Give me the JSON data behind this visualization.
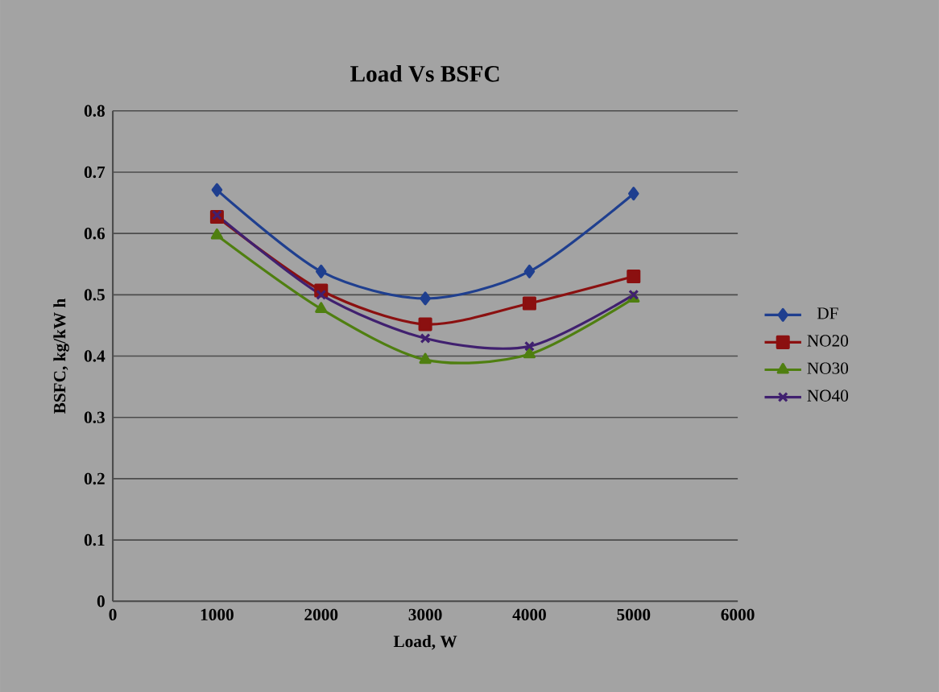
{
  "chart_data": {
    "type": "line",
    "title": "Load Vs BSFC",
    "xlabel": "Load, W",
    "ylabel": "BSFC, kg/kW h",
    "x": [
      1000,
      2000,
      3000,
      4000,
      5000
    ],
    "series": [
      {
        "name": "DF",
        "color": "#1f3f8f",
        "marker": "diamond",
        "values": [
          0.671,
          0.538,
          0.494,
          0.538,
          0.665
        ]
      },
      {
        "name": "NO20",
        "color": "#8b1010",
        "marker": "square",
        "values": [
          0.627,
          0.507,
          0.452,
          0.486,
          0.53
        ]
      },
      {
        "name": "NO30",
        "color": "#4f7f10",
        "marker": "triangle",
        "values": [
          0.597,
          0.477,
          0.394,
          0.403,
          0.494
        ]
      },
      {
        "name": "NO40",
        "color": "#40206f",
        "marker": "cross",
        "values": [
          0.63,
          0.5,
          0.429,
          0.416,
          0.5
        ]
      }
    ],
    "xlim": [
      0,
      6000
    ],
    "xticks": [
      0,
      1000,
      2000,
      3000,
      4000,
      5000,
      6000
    ],
    "ylim": [
      0,
      0.8
    ],
    "yticks": [
      0,
      0.1,
      0.2,
      0.3,
      0.4,
      0.5,
      0.6,
      0.7,
      0.8
    ],
    "grid": "y",
    "legend": "right",
    "line_style": "solid"
  }
}
